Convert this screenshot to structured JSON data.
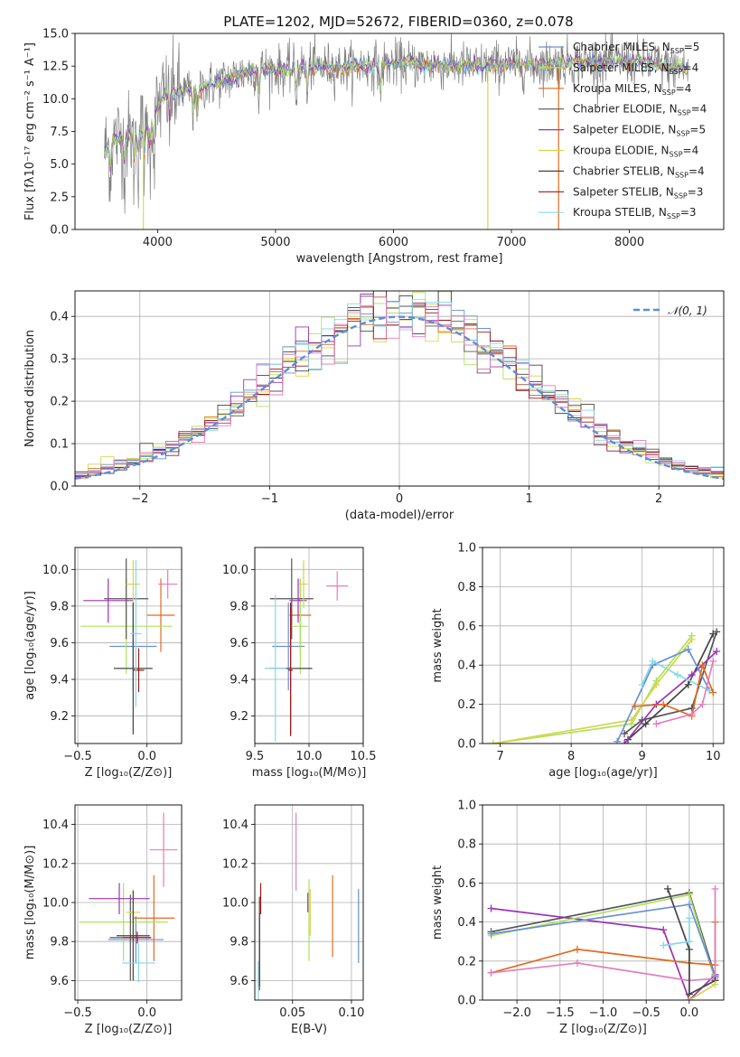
{
  "figure_title": "PLATE=1202, MJD=52672, FIBERID=0360, z=0.078",
  "colors": [
    "#6a8fd8",
    "#e06c1f",
    "#aee25a",
    "#555555",
    "#9b34b4",
    "#d4d64a",
    "#444444",
    "#a31515",
    "#86d8e6",
    "#e37fbd"
  ],
  "chart_data": [
    {
      "id": "spectrum",
      "type": "line",
      "title": "PLATE=1202, MJD=52672, FIBERID=0360, z=0.078",
      "xlabel": "wavelength [Angstrom, rest frame]",
      "ylabel": "Flux [fλ10⁻¹⁷ erg cm⁻² s⁻¹ A⁻¹]",
      "xlim": [
        3300,
        8800
      ],
      "ylim": [
        0,
        15
      ],
      "xticks": [
        "4000",
        "5000",
        "6000",
        "7000",
        "8000"
      ],
      "yticks": [
        "0.0",
        "2.5",
        "5.0",
        "7.5",
        "10.0",
        "12.5",
        "15.0"
      ],
      "grid": false,
      "legend_position": "right",
      "legend": [
        {
          "name": "Chabrier MILES, N",
          "sub": "SSP",
          "eq": "=5",
          "color": "#6a8fd8"
        },
        {
          "name": "Salpeter MILES, N",
          "sub": "SSP",
          "eq": "=4",
          "color": "#aee25a"
        },
        {
          "name": "Kroupa MILES, N",
          "sub": "SSP",
          "eq": "=4",
          "color": "#e06c1f"
        },
        {
          "name": "Chabrier ELODIE, N",
          "sub": "SSP",
          "eq": "=4",
          "color": "#555555"
        },
        {
          "name": "Salpeter ELODIE, N",
          "sub": "SSP",
          "eq": "=5",
          "color": "#9b34b4"
        },
        {
          "name": "Kroupa ELODIE, N",
          "sub": "SSP",
          "eq": "=4",
          "color": "#d4d64a"
        },
        {
          "name": "Chabrier STELIB, N",
          "sub": "SSP",
          "eq": "=4",
          "color": "#444444"
        },
        {
          "name": "Salpeter STELIB, N",
          "sub": "SSP",
          "eq": "=3",
          "color": "#a31515"
        },
        {
          "name": "Kroupa STELIB, N",
          "sub": "SSP",
          "eq": "=3",
          "color": "#86d8e6"
        }
      ],
      "data_spectrum": {
        "x_range": [
          3550,
          8500
        ],
        "shape_points": [
          [
            3550,
            6.0
          ],
          [
            3650,
            7.0
          ],
          [
            3750,
            7.0
          ],
          [
            3850,
            7.5
          ],
          [
            3950,
            8.0
          ],
          [
            4050,
            10.3
          ],
          [
            4200,
            10.5
          ],
          [
            4300,
            10.7
          ],
          [
            4500,
            11.2
          ],
          [
            4700,
            11.9
          ],
          [
            4900,
            12.3
          ],
          [
            5100,
            12.2
          ],
          [
            5300,
            12.5
          ],
          [
            5600,
            12.4
          ],
          [
            5900,
            12.6
          ],
          [
            6100,
            12.7
          ],
          [
            6300,
            12.6
          ],
          [
            6500,
            12.5
          ],
          [
            6700,
            12.5
          ],
          [
            6900,
            12.6
          ],
          [
            7200,
            12.6
          ],
          [
            7500,
            12.8
          ],
          [
            7800,
            12.9
          ],
          [
            8100,
            12.8
          ],
          [
            8300,
            12.5
          ],
          [
            8500,
            12.3
          ]
        ]
      },
      "cutoffs": [
        {
          "series": "Salpeter MILES",
          "x_from": 6800
        },
        {
          "series": "Kroupa MILES",
          "x_from": 7400
        }
      ]
    },
    {
      "id": "residuals",
      "type": "line",
      "xlabel": "(data-model)/error",
      "ylabel": "Normed distribution",
      "xlim": [
        -2.5,
        2.5
      ],
      "ylim": [
        0,
        0.46
      ],
      "xticks": [
        "−2",
        "−1",
        "0",
        "1",
        "2"
      ],
      "yticks": [
        "0.0",
        "0.1",
        "0.2",
        "0.3",
        "0.4"
      ],
      "grid": true,
      "legend_position": "top-right",
      "legend": [
        {
          "name": "𝒩(0, 1)",
          "color": "#5b8fd9"
        }
      ],
      "reference_curve": {
        "name": "N(0,1)",
        "mean": 0,
        "sigma": 1
      },
      "histogram_bins": 50
    },
    {
      "id": "age_vs_Z",
      "type": "scatter",
      "xlabel": "Z [log₁₀(Z/Z⊙)]",
      "ylabel": "age  [log₁₀(age/yr)]",
      "xlim": [
        -0.52,
        0.25
      ],
      "ylim": [
        9.05,
        10.12
      ],
      "xticks": [
        "−0.5",
        "0.0"
      ],
      "yticks": [
        "9.2",
        "9.4",
        "9.6",
        "9.8",
        "10.0"
      ],
      "grid": true,
      "points": [
        {
          "x": -0.1,
          "y": 9.58,
          "xerr": 0.17,
          "yerr": 0.24,
          "color": "#6a8fd8"
        },
        {
          "x": 0.1,
          "y": 9.75,
          "xerr": 0.1,
          "yerr": 0.2,
          "color": "#e06c1f"
        },
        {
          "x": -0.15,
          "y": 9.69,
          "xerr": 0.33,
          "yerr": 0.26,
          "color": "#aee25a"
        },
        {
          "x": -0.15,
          "y": 9.84,
          "xerr": 0.16,
          "yerr": 0.22,
          "color": "#555555"
        },
        {
          "x": -0.28,
          "y": 9.83,
          "xerr": 0.18,
          "yerr": 0.12,
          "color": "#9b34b4"
        },
        {
          "x": -0.1,
          "y": 9.92,
          "xerr": 0.05,
          "yerr": 0.13,
          "color": "#d4d64a"
        },
        {
          "x": -0.1,
          "y": 9.46,
          "xerr": 0.14,
          "yerr": 0.36,
          "color": "#444444"
        },
        {
          "x": -0.06,
          "y": 9.45,
          "xerr": 0.04,
          "yerr": 0.12,
          "color": "#a31515"
        },
        {
          "x": -0.08,
          "y": 9.65,
          "xerr": 0.04,
          "yerr": 0.4,
          "color": "#86d8e6"
        },
        {
          "x": 0.15,
          "y": 9.92,
          "xerr": 0.07,
          "yerr": 0.08,
          "color": "#e37fbd"
        }
      ]
    },
    {
      "id": "age_vs_mass",
      "type": "scatter",
      "xlabel": "mass [log₁₀(M/M⊙)]",
      "ylabel": "",
      "xlim": [
        9.5,
        10.5
      ],
      "ylim": [
        9.05,
        10.12
      ],
      "xticks": [
        "9.5",
        "10.0",
        "10.5"
      ],
      "yticks": [
        "9.2",
        "9.4",
        "9.6",
        "9.8",
        "10.0"
      ],
      "grid": true,
      "points": [
        {
          "x": 9.81,
          "y": 9.58,
          "xerr": 0.15,
          "yerr": 0.24,
          "color": "#6a8fd8"
        },
        {
          "x": 9.92,
          "y": 9.75,
          "xerr": 0.1,
          "yerr": 0.2,
          "color": "#e06c1f"
        },
        {
          "x": 9.92,
          "y": 9.69,
          "xerr": 0.07,
          "yerr": 0.26,
          "color": "#aee25a"
        },
        {
          "x": 9.84,
          "y": 9.84,
          "xerr": 0.2,
          "yerr": 0.22,
          "color": "#555555"
        },
        {
          "x": 9.9,
          "y": 9.83,
          "xerr": 0.08,
          "yerr": 0.12,
          "color": "#9b34b4"
        },
        {
          "x": 9.95,
          "y": 9.92,
          "xerr": 0.04,
          "yerr": 0.13,
          "color": "#d4d64a"
        },
        {
          "x": 9.83,
          "y": 9.46,
          "xerr": 0.2,
          "yerr": 0.36,
          "color": "#444444"
        },
        {
          "x": 9.83,
          "y": 9.45,
          "xerr": 0.02,
          "yerr": 0.36,
          "color": "#a31515"
        },
        {
          "x": 9.69,
          "y": 9.46,
          "xerr": 0.1,
          "yerr": 0.4,
          "color": "#86d8e6"
        },
        {
          "x": 10.26,
          "y": 9.91,
          "xerr": 0.1,
          "yerr": 0.08,
          "color": "#e37fbd"
        }
      ]
    },
    {
      "id": "weight_vs_age",
      "type": "line",
      "xlabel": "age  [log₁₀(age/yr)]",
      "ylabel": "mass weight",
      "xlim": [
        6.75,
        10.15
      ],
      "ylim": [
        0,
        1.0
      ],
      "xticks": [
        "7",
        "8",
        "9",
        "10"
      ],
      "yticks": [
        "0.0",
        "0.2",
        "0.4",
        "0.6",
        "0.8",
        "1.0"
      ],
      "grid": true,
      "series": [
        {
          "color": "#aee25a",
          "x": [
            6.9,
            8.85,
            9.2,
            9.7
          ],
          "y": [
            0.0,
            0.1,
            0.32,
            0.55
          ]
        },
        {
          "color": "#d4d64a",
          "x": [
            6.9,
            8.85,
            9.2,
            9.7
          ],
          "y": [
            0.0,
            0.12,
            0.3,
            0.53
          ]
        },
        {
          "color": "#555555",
          "x": [
            8.75,
            9.0,
            9.7,
            10.05
          ],
          "y": [
            0.05,
            0.12,
            0.18,
            0.57
          ]
        },
        {
          "color": "#444444",
          "x": [
            8.8,
            9.05,
            9.65,
            10.0
          ],
          "y": [
            0.02,
            0.1,
            0.3,
            0.56
          ]
        },
        {
          "color": "#9b34b4",
          "x": [
            8.75,
            9.2,
            9.7,
            10.05
          ],
          "y": [
            0.0,
            0.2,
            0.35,
            0.47
          ]
        },
        {
          "color": "#6a8fd8",
          "x": [
            8.65,
            9.15,
            9.65,
            9.95
          ],
          "y": [
            0.01,
            0.4,
            0.48,
            0.27
          ]
        },
        {
          "color": "#86d8e6",
          "x": [
            9.0,
            9.15,
            9.5,
            9.95
          ],
          "y": [
            0.3,
            0.42,
            0.35,
            0.27
          ]
        },
        {
          "color": "#e06c1f",
          "x": [
            8.9,
            9.3,
            9.7,
            9.85,
            10.0
          ],
          "y": [
            0.19,
            0.2,
            0.14,
            0.4,
            0.26
          ]
        },
        {
          "color": "#e37fbd",
          "x": [
            9.2,
            9.7,
            9.85,
            10.0
          ],
          "y": [
            0.1,
            0.15,
            0.2,
            0.42
          ]
        }
      ]
    },
    {
      "id": "mass_vs_Z",
      "type": "scatter",
      "xlabel": "Z [log₁₀(Z/Z⊙)]",
      "ylabel": "mass [log₁₀(M/M⊙)]",
      "xlim": [
        -0.52,
        0.25
      ],
      "ylim": [
        9.5,
        10.5
      ],
      "xticks": [
        "−0.5",
        "0.0"
      ],
      "yticks": [
        "9.6",
        "9.8",
        "10.0",
        "10.2",
        "10.4"
      ],
      "grid": true,
      "points": [
        {
          "x": -0.08,
          "y": 9.81,
          "xerr": 0.2,
          "yerr": 0.12,
          "color": "#6a8fd8"
        },
        {
          "x": 0.05,
          "y": 9.92,
          "xerr": 0.15,
          "yerr": 0.22,
          "color": "#e06c1f"
        },
        {
          "x": -0.17,
          "y": 9.9,
          "xerr": 0.32,
          "yerr": 0.2,
          "color": "#aee25a"
        },
        {
          "x": -0.12,
          "y": 9.82,
          "xerr": 0.15,
          "yerr": 0.22,
          "color": "#555555"
        },
        {
          "x": -0.2,
          "y": 10.02,
          "xerr": 0.22,
          "yerr": 0.08,
          "color": "#9b34b4"
        },
        {
          "x": -0.1,
          "y": 9.95,
          "xerr": 0.05,
          "yerr": 0.12,
          "color": "#d4d64a"
        },
        {
          "x": -0.1,
          "y": 9.83,
          "xerr": 0.12,
          "yerr": 0.23,
          "color": "#444444"
        },
        {
          "x": -0.07,
          "y": 9.82,
          "xerr": 0.1,
          "yerr": 0.03,
          "color": "#a31515"
        },
        {
          "x": -0.06,
          "y": 9.69,
          "xerr": 0.12,
          "yerr": 0.1,
          "color": "#86d8e6"
        },
        {
          "x": 0.12,
          "y": 10.27,
          "xerr": 0.1,
          "yerr": 0.19,
          "color": "#e37fbd"
        }
      ]
    },
    {
      "id": "mass_vs_EBV",
      "type": "scatter",
      "xlabel": "E(B-V)",
      "ylabel": "",
      "xlim": [
        0.018,
        0.11
      ],
      "ylim": [
        9.5,
        10.5
      ],
      "xticks": [
        "0.05",
        "0.10"
      ],
      "yticks": [
        "9.6",
        "9.8",
        "10.0",
        "10.2",
        "10.4"
      ],
      "grid": true,
      "points": [
        {
          "x": 0.106,
          "y": 9.88,
          "yerr": 0.19,
          "color": "#6a8fd8"
        },
        {
          "x": 0.084,
          "y": 9.93,
          "yerr": 0.21,
          "color": "#e06c1f"
        },
        {
          "x": 0.064,
          "y": 9.91,
          "yerr": 0.21,
          "color": "#aee25a"
        },
        {
          "x": 0.022,
          "y": 9.75,
          "yerr": 0.2,
          "color": "#555555"
        },
        {
          "x": 0.063,
          "y": 10.0,
          "yerr": 0.05,
          "color": "#9b34b4"
        },
        {
          "x": 0.065,
          "y": 9.95,
          "yerr": 0.12,
          "color": "#d4d64a"
        },
        {
          "x": 0.022,
          "y": 9.8,
          "yerr": 0.23,
          "color": "#444444"
        },
        {
          "x": 0.023,
          "y": 10.02,
          "yerr": 0.08,
          "color": "#a31515"
        },
        {
          "x": 0.021,
          "y": 9.6,
          "yerr": 0.1,
          "color": "#86d8e6"
        },
        {
          "x": 0.053,
          "y": 10.26,
          "yerr": 0.2,
          "color": "#e37fbd"
        }
      ]
    },
    {
      "id": "weight_vs_Z",
      "type": "line",
      "xlabel": "Z [log₁₀(Z/Z⊙)]",
      "ylabel": "mass weight",
      "xlim": [
        -2.4,
        0.4
      ],
      "ylim": [
        0,
        1.0
      ],
      "xticks": [
        "−2.0",
        "−1.5",
        "−1.0",
        "−0.5",
        "0.0"
      ],
      "yticks": [
        "0.0",
        "0.2",
        "0.4",
        "0.6",
        "0.8",
        "1.0"
      ],
      "grid": true,
      "series": [
        {
          "color": "#9b34b4",
          "x": [
            -2.3,
            -0.3,
            0.0,
            0.3
          ],
          "y": [
            0.47,
            0.36,
            0.0,
            0.13
          ]
        },
        {
          "color": "#555555",
          "x": [
            -2.3,
            0.0,
            0.3
          ],
          "y": [
            0.35,
            0.55,
            0.12
          ]
        },
        {
          "color": "#aee25a",
          "x": [
            -2.3,
            0.0,
            0.3
          ],
          "y": [
            0.33,
            0.54,
            0.1
          ]
        },
        {
          "color": "#6a8fd8",
          "x": [
            -2.3,
            0.0,
            0.3
          ],
          "y": [
            0.34,
            0.49,
            0.12
          ]
        },
        {
          "color": "#e06c1f",
          "x": [
            -2.3,
            -1.3,
            0.0,
            0.3,
            0.3
          ],
          "y": [
            0.14,
            0.26,
            0.19,
            0.18,
            0.4
          ]
        },
        {
          "color": "#e37fbd",
          "x": [
            -2.3,
            -1.3,
            0.0,
            0.3,
            0.3
          ],
          "y": [
            0.14,
            0.19,
            0.1,
            0.11,
            0.57
          ]
        },
        {
          "color": "#444444",
          "x": [
            -0.25,
            0.0,
            0.0,
            0.3
          ],
          "y": [
            0.57,
            0.26,
            0.03,
            0.1
          ]
        },
        {
          "color": "#86d8e6",
          "x": [
            -0.3,
            0.0,
            0.0
          ],
          "y": [
            0.28,
            0.3,
            0.42
          ]
        },
        {
          "color": "#d4d64a",
          "x": [
            0.0,
            0.3
          ],
          "y": [
            0.0,
            0.08
          ]
        }
      ]
    }
  ]
}
